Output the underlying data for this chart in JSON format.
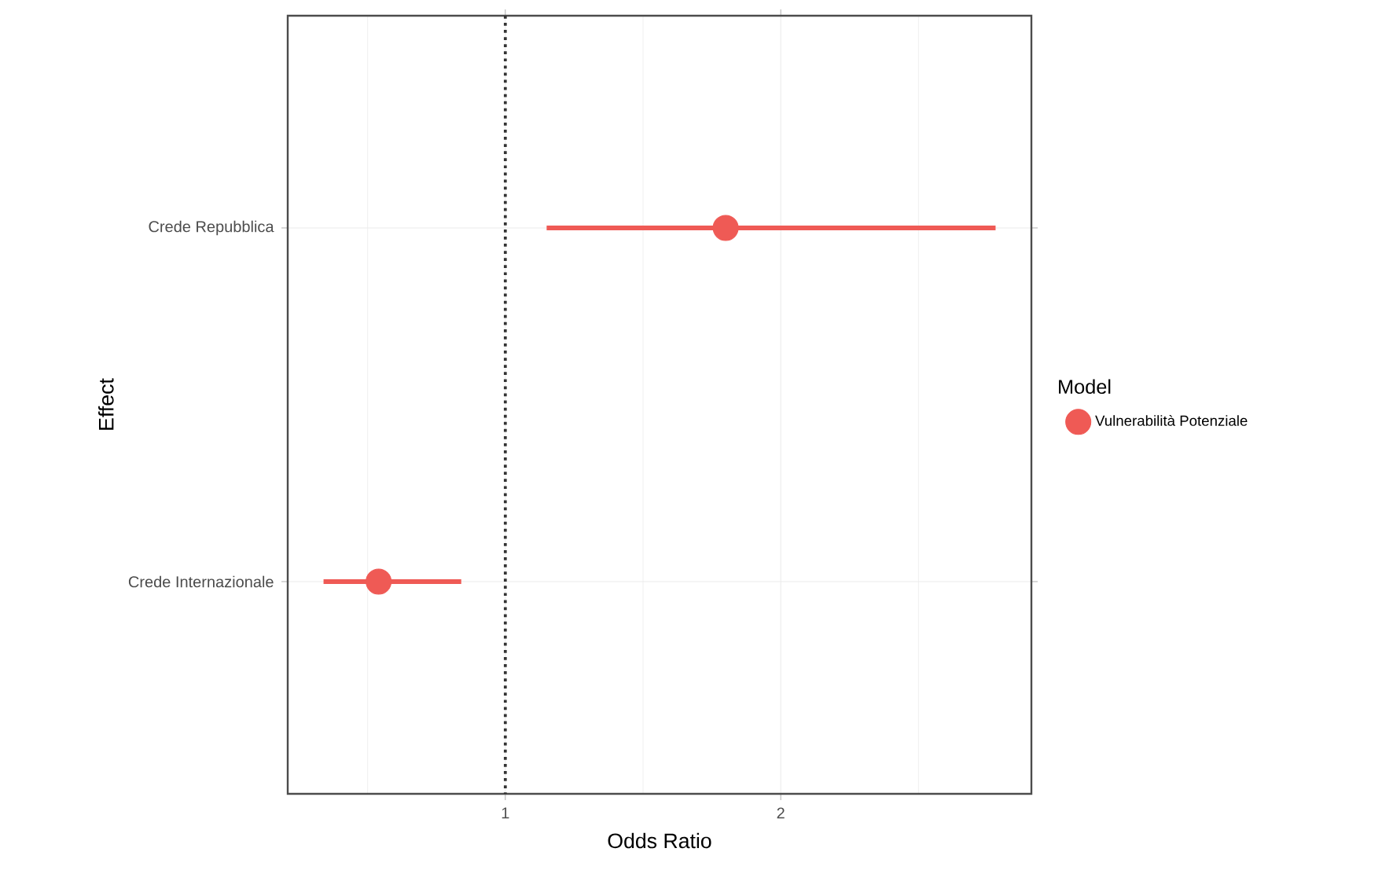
{
  "chart_data": {
    "type": "scatter",
    "orientation": "horizontal",
    "categories": [
      "Crede Repubblica",
      "Crede Internazionale"
    ],
    "series": [
      {
        "name": "Vulnerabilità Potenziale",
        "color": "#ef5a55",
        "values": [
          1.8,
          0.54
        ],
        "errors": [
          [
            1.15,
            2.78
          ],
          [
            0.34,
            0.84
          ]
        ]
      }
    ],
    "xlim": [
      0.21,
      2.91
    ],
    "xticks": [
      {
        "value": 0.5,
        "label": null
      },
      1,
      {
        "value": 1.5,
        "label": null
      },
      2,
      {
        "value": 2.5,
        "label": null
      }
    ],
    "xlabel": "Odds Ratio",
    "ylabel": "Effect",
    "legend_title": "Model",
    "legend": "right",
    "grid": true,
    "ref_lines": [
      {
        "axis": "x",
        "value": 1,
        "line_style": "dotted",
        "color": "#333333"
      }
    ]
  }
}
